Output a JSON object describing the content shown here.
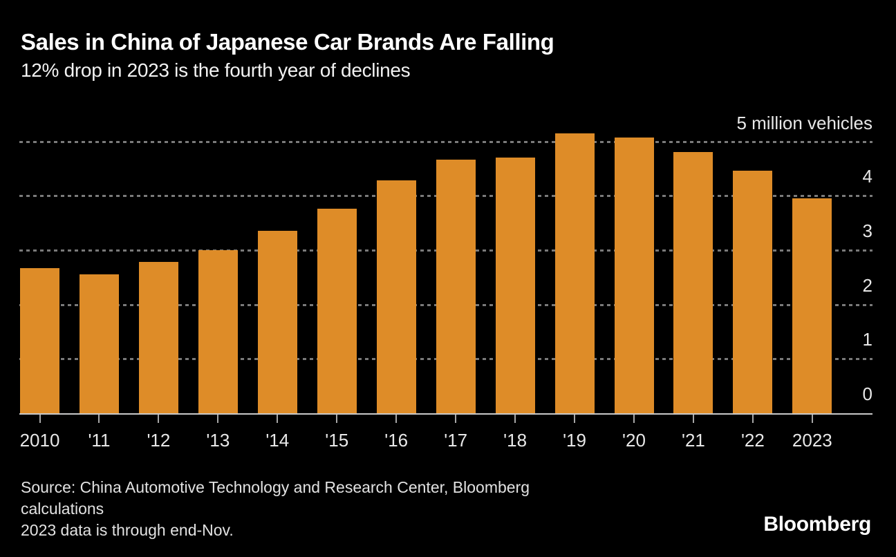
{
  "header": {
    "title": "Sales in China of Japanese Car Brands Are Falling",
    "subtitle": "12% drop in 2023 is the fourth year of declines"
  },
  "chart_data": {
    "type": "bar",
    "title": "Sales in China of Japanese Car Brands Are Falling",
    "subtitle": "12% drop in 2023 is the fourth year of declines",
    "unit_label": "5 million vehicles",
    "categories": [
      "2010",
      "'11",
      "'12",
      "'13",
      "'14",
      "'15",
      "'16",
      "'17",
      "'18",
      "'19",
      "'20",
      "'21",
      "'22",
      "2023"
    ],
    "values": [
      2.67,
      2.56,
      2.79,
      3.0,
      3.35,
      3.76,
      4.29,
      4.66,
      4.71,
      5.15,
      5.07,
      4.81,
      4.46,
      3.96
    ],
    "xlabel": "",
    "ylabel": "million vehicles",
    "ylim": [
      0,
      5
    ],
    "yticks": [
      0,
      1,
      2,
      3,
      4
    ],
    "grid": "dashed-horizontal",
    "legend_position": "none",
    "bar_color": "#de8c28",
    "background_color": "#000000"
  },
  "footer": {
    "source_lines": [
      "Source: China Automotive Technology and Research Center, Bloomberg",
      "calculations"
    ],
    "note": "2023 data is through end-Nov.",
    "brand": "Bloomberg"
  }
}
